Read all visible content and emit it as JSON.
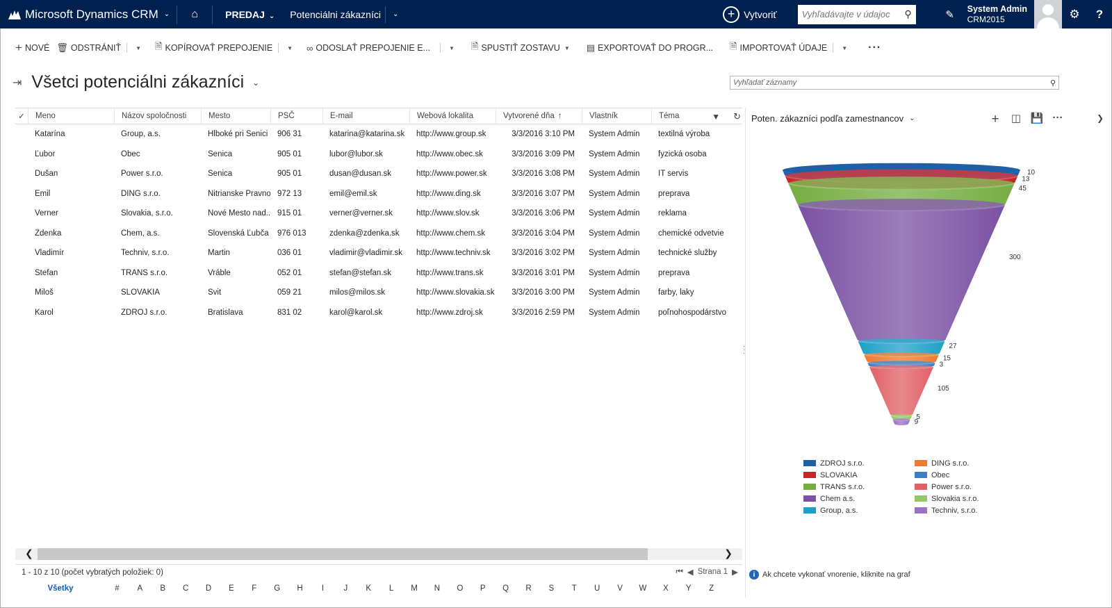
{
  "nav": {
    "app_name": "Microsoft Dynamics CRM",
    "area": "PREDAJ",
    "entity": "Potenciálni zákazníci",
    "create_label": "Vytvoriť",
    "search_placeholder": "Vyhľadávajte v údajoc",
    "user_name": "System Admin",
    "org_name": "CRM2015"
  },
  "commands": [
    {
      "label": "NOVÉ",
      "icon": "plus-icon"
    },
    {
      "label": "ODSTRÁNIŤ",
      "icon": "trash-icon"
    },
    {
      "label": "KOPÍROVAŤ PREPOJENIE",
      "icon": "copy-icon"
    },
    {
      "label": "ODOSLAŤ PREPOJENIE E...",
      "icon": "link-icon"
    },
    {
      "label": "SPUSTIŤ ZOSTAVU",
      "icon": "report-icon"
    },
    {
      "label": "EXPORTOVAŤ DO PROGR...",
      "icon": "excel-icon"
    },
    {
      "label": "IMPORTOVAŤ ÚDAJE",
      "icon": "import-icon"
    }
  ],
  "view": {
    "title": "Všetci potenciálni zákazníci",
    "record_search_placeholder": "Vyhľadať záznamy"
  },
  "grid": {
    "columns": [
      "Meno",
      "Názov spoločnosti",
      "Mesto",
      "PSČ",
      "E-mail",
      "Webová lokalita",
      "Vytvorené dňa",
      "Vlastník",
      "Téma"
    ],
    "rows": [
      [
        "Katarína",
        "Group, a.s.",
        "Hlboké pri Senici",
        "906 31",
        "katarina@katarina.sk",
        "http://www.group.sk",
        "3/3/2016 3:10 PM",
        "System Admin",
        "textilná výroba"
      ],
      [
        "Ľubor",
        "Obec",
        "Senica",
        "905 01",
        "lubor@lubor.sk",
        "http://www.obec.sk",
        "3/3/2016 3:09 PM",
        "System Admin",
        "fyzická osoba"
      ],
      [
        "Dušan",
        "Power s.r.o.",
        "Senica",
        "905 01",
        "dusan@dusan.sk",
        "http://www.power.sk",
        "3/3/2016 3:08 PM",
        "System Admin",
        "IT servis"
      ],
      [
        "Emil",
        "DING s.r.o.",
        "Nitrianske Pravno",
        "972 13",
        "emil@emil.sk",
        "http://www.ding.sk",
        "3/3/2016 3:07 PM",
        "System Admin",
        "preprava"
      ],
      [
        "Verner",
        "Slovakia, s.r.o.",
        "Nové Mesto nad...",
        "915 01",
        "verner@verner.sk",
        "http://www.slov.sk",
        "3/3/2016 3:06 PM",
        "System Admin",
        "reklama"
      ],
      [
        "Zdenka",
        "Chem, a.s.",
        "Slovenská Ľubča",
        "976 013",
        "zdenka@zdenka.sk",
        "http://www.chem.sk",
        "3/3/2016 3:04 PM",
        "System Admin",
        "chemické odvetvie"
      ],
      [
        "Vladimír",
        "Techniv, s.r.o.",
        "Martin",
        "036 01",
        "vladimir@vladimir.sk",
        "http://www.techniv.sk",
        "3/3/2016 3:02 PM",
        "System Admin",
        "technické služby"
      ],
      [
        "Štefan",
        "TRANS s.r.o.",
        "Vráble",
        "052 01",
        "stefan@stefan.sk",
        "http://www.trans.sk",
        "3/3/2016 3:01 PM",
        "System Admin",
        "preprava"
      ],
      [
        "Miloš",
        "SLOVAKIA",
        "Svit",
        "059 21",
        "milos@milos.sk",
        "http://www.slovakia.sk",
        "3/3/2016 3:00 PM",
        "System Admin",
        "farby, laky"
      ],
      [
        "Karol",
        "ZDROJ s.r.o.",
        "Bratislava",
        "831 02",
        "karol@karol.sk",
        "http://www.zdroj.sk",
        "3/3/2016 2:59 PM",
        "System Admin",
        "poľnohospodárstvo"
      ]
    ]
  },
  "footer": {
    "count_text": "1 - 10  z 10  (počet vybratých položiek: 0)",
    "page_text": "Strana 1",
    "all_label": "Všetky",
    "letters": [
      "#",
      "A",
      "B",
      "C",
      "D",
      "E",
      "F",
      "G",
      "H",
      "I",
      "J",
      "K",
      "L",
      "M",
      "N",
      "O",
      "P",
      "Q",
      "R",
      "S",
      "T",
      "U",
      "V",
      "W",
      "X",
      "Y",
      "Z"
    ]
  },
  "chart_panel": {
    "title": "Poten. zákazníci podľa zamestnancov",
    "drill_hint": "Ak chcete vykonať vnorenie, kliknite na graf"
  },
  "chart_data": {
    "type": "funnel",
    "series": [
      {
        "name": "ZDROJ s.r.o.",
        "value": 10,
        "color": "#1f5fa8"
      },
      {
        "name": "SLOVAKIA",
        "value": 13,
        "color": "#c8242b"
      },
      {
        "name": "TRANS  s.r.o.",
        "value": 45,
        "color": "#76ad42"
      },
      {
        "name": "Chem  a.s.",
        "value": 300,
        "color": "#7b52a3"
      },
      {
        "name": "Group, a.s.",
        "value": 27,
        "color": "#1da0c8"
      },
      {
        "name": "DING s.r.o.",
        "value": 15,
        "color": "#ef7b2e"
      },
      {
        "name": "Obec",
        "value": 3,
        "color": "#3d7fc4"
      },
      {
        "name": "Power s.r.o.",
        "value": 105,
        "color": "#e06166"
      },
      {
        "name": "Slovakia s.r.o.",
        "value": 5,
        "color": "#92c965"
      },
      {
        "name": "Techniv, s.r.o.",
        "value": 9,
        "color": "#9a72c2"
      }
    ]
  }
}
